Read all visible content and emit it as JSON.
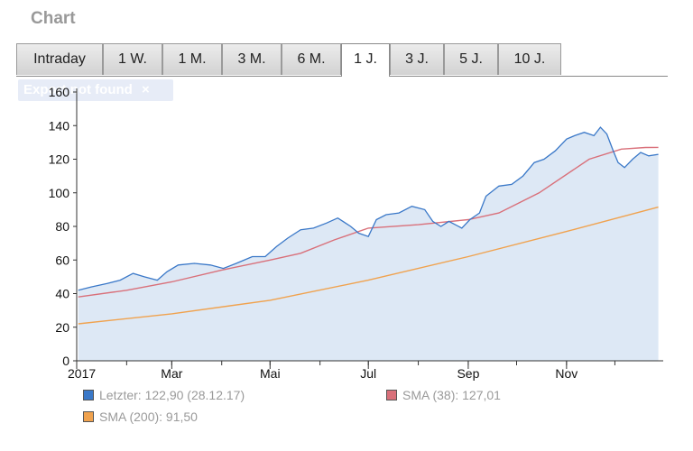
{
  "heading": "Chart",
  "tabs": [
    {
      "label": "Intraday",
      "active": false
    },
    {
      "label": "1 W.",
      "active": false
    },
    {
      "label": "1 M.",
      "active": false
    },
    {
      "label": "3 M.",
      "active": false
    },
    {
      "label": "6 M.",
      "active": false
    },
    {
      "label": "1 J.",
      "active": true
    },
    {
      "label": "3 J.",
      "active": false
    },
    {
      "label": "5 J.",
      "active": false
    },
    {
      "label": "10 J.",
      "active": false
    }
  ],
  "error_badge": {
    "text": "Export not found",
    "close": "×"
  },
  "legend": {
    "items": [
      {
        "text": "Letzter: 122,90 (28.12.17)",
        "color": "#3a78c8"
      },
      {
        "text": "SMA (38): 127,01",
        "color": "#d9707a"
      },
      {
        "text": "SMA (200): 91,50",
        "color": "#f0a24e"
      }
    ]
  },
  "colors": {
    "price_line": "#3a78c8",
    "area_fill": "#dde8f5",
    "sma38": "#d9707a",
    "sma200": "#f0a24e"
  },
  "chart_data": {
    "type": "line",
    "title": "",
    "xlabel": "",
    "ylabel": "",
    "ylim": [
      0,
      160
    ],
    "yticks": [
      0,
      20,
      40,
      60,
      80,
      100,
      120,
      140,
      160
    ],
    "xticks": [
      {
        "date": "2017-01-01",
        "label": "2017"
      },
      {
        "date": "2017-03-01",
        "label": "Mar"
      },
      {
        "date": "2017-05-01",
        "label": "Mai"
      },
      {
        "date": "2017-07-01",
        "label": "Jul"
      },
      {
        "date": "2017-09-01",
        "label": "Sep"
      },
      {
        "date": "2017-11-01",
        "label": "Nov"
      }
    ],
    "xlim": [
      "2017-01-01",
      "2017-12-31"
    ],
    "grid": false,
    "series": [
      {
        "name": "Letzter",
        "fill": true,
        "points": [
          [
            "2017-01-02",
            42
          ],
          [
            "2017-01-10",
            44
          ],
          [
            "2017-01-20",
            46
          ],
          [
            "2017-01-28",
            48
          ],
          [
            "2017-02-05",
            52
          ],
          [
            "2017-02-12",
            50
          ],
          [
            "2017-02-20",
            48
          ],
          [
            "2017-02-26",
            53
          ],
          [
            "2017-03-05",
            57
          ],
          [
            "2017-03-15",
            58
          ],
          [
            "2017-03-25",
            57
          ],
          [
            "2017-04-02",
            55
          ],
          [
            "2017-04-10",
            58
          ],
          [
            "2017-04-20",
            62
          ],
          [
            "2017-04-28",
            62
          ],
          [
            "2017-05-05",
            68
          ],
          [
            "2017-05-12",
            73
          ],
          [
            "2017-05-20",
            78
          ],
          [
            "2017-05-28",
            79
          ],
          [
            "2017-06-05",
            82
          ],
          [
            "2017-06-12",
            85
          ],
          [
            "2017-06-20",
            80
          ],
          [
            "2017-06-25",
            76
          ],
          [
            "2017-07-01",
            74
          ],
          [
            "2017-07-06",
            84
          ],
          [
            "2017-07-12",
            87
          ],
          [
            "2017-07-20",
            88
          ],
          [
            "2017-07-28",
            92
          ],
          [
            "2017-08-05",
            90
          ],
          [
            "2017-08-10",
            83
          ],
          [
            "2017-08-15",
            80
          ],
          [
            "2017-08-20",
            83
          ],
          [
            "2017-08-28",
            79
          ],
          [
            "2017-09-02",
            84
          ],
          [
            "2017-09-08",
            88
          ],
          [
            "2017-09-12",
            98
          ],
          [
            "2017-09-20",
            104
          ],
          [
            "2017-09-28",
            105
          ],
          [
            "2017-10-05",
            110
          ],
          [
            "2017-10-12",
            118
          ],
          [
            "2017-10-18",
            120
          ],
          [
            "2017-10-25",
            125
          ],
          [
            "2017-11-01",
            132
          ],
          [
            "2017-11-06",
            134
          ],
          [
            "2017-11-12",
            136
          ],
          [
            "2017-11-18",
            134
          ],
          [
            "2017-11-22",
            139
          ],
          [
            "2017-11-26",
            135
          ],
          [
            "2017-11-30",
            125
          ],
          [
            "2017-12-03",
            118
          ],
          [
            "2017-12-07",
            115
          ],
          [
            "2017-12-12",
            120
          ],
          [
            "2017-12-17",
            124
          ],
          [
            "2017-12-22",
            122
          ],
          [
            "2017-12-28",
            122.9
          ]
        ]
      },
      {
        "name": "SMA (38)",
        "points": [
          [
            "2017-01-02",
            38
          ],
          [
            "2017-02-01",
            42
          ],
          [
            "2017-03-01",
            47
          ],
          [
            "2017-04-01",
            54
          ],
          [
            "2017-05-01",
            60
          ],
          [
            "2017-05-20",
            64
          ],
          [
            "2017-06-10",
            72
          ],
          [
            "2017-07-01",
            79
          ],
          [
            "2017-08-01",
            81
          ],
          [
            "2017-09-01",
            84
          ],
          [
            "2017-09-20",
            88
          ],
          [
            "2017-10-15",
            100
          ],
          [
            "2017-11-15",
            120
          ],
          [
            "2017-12-05",
            126
          ],
          [
            "2017-12-20",
            127
          ],
          [
            "2017-12-28",
            127.01
          ]
        ]
      },
      {
        "name": "SMA (200)",
        "points": [
          [
            "2017-01-02",
            22
          ],
          [
            "2017-03-01",
            28
          ],
          [
            "2017-05-01",
            36
          ],
          [
            "2017-07-01",
            48
          ],
          [
            "2017-09-01",
            62
          ],
          [
            "2017-11-01",
            77
          ],
          [
            "2017-12-28",
            91.5
          ]
        ]
      }
    ]
  }
}
